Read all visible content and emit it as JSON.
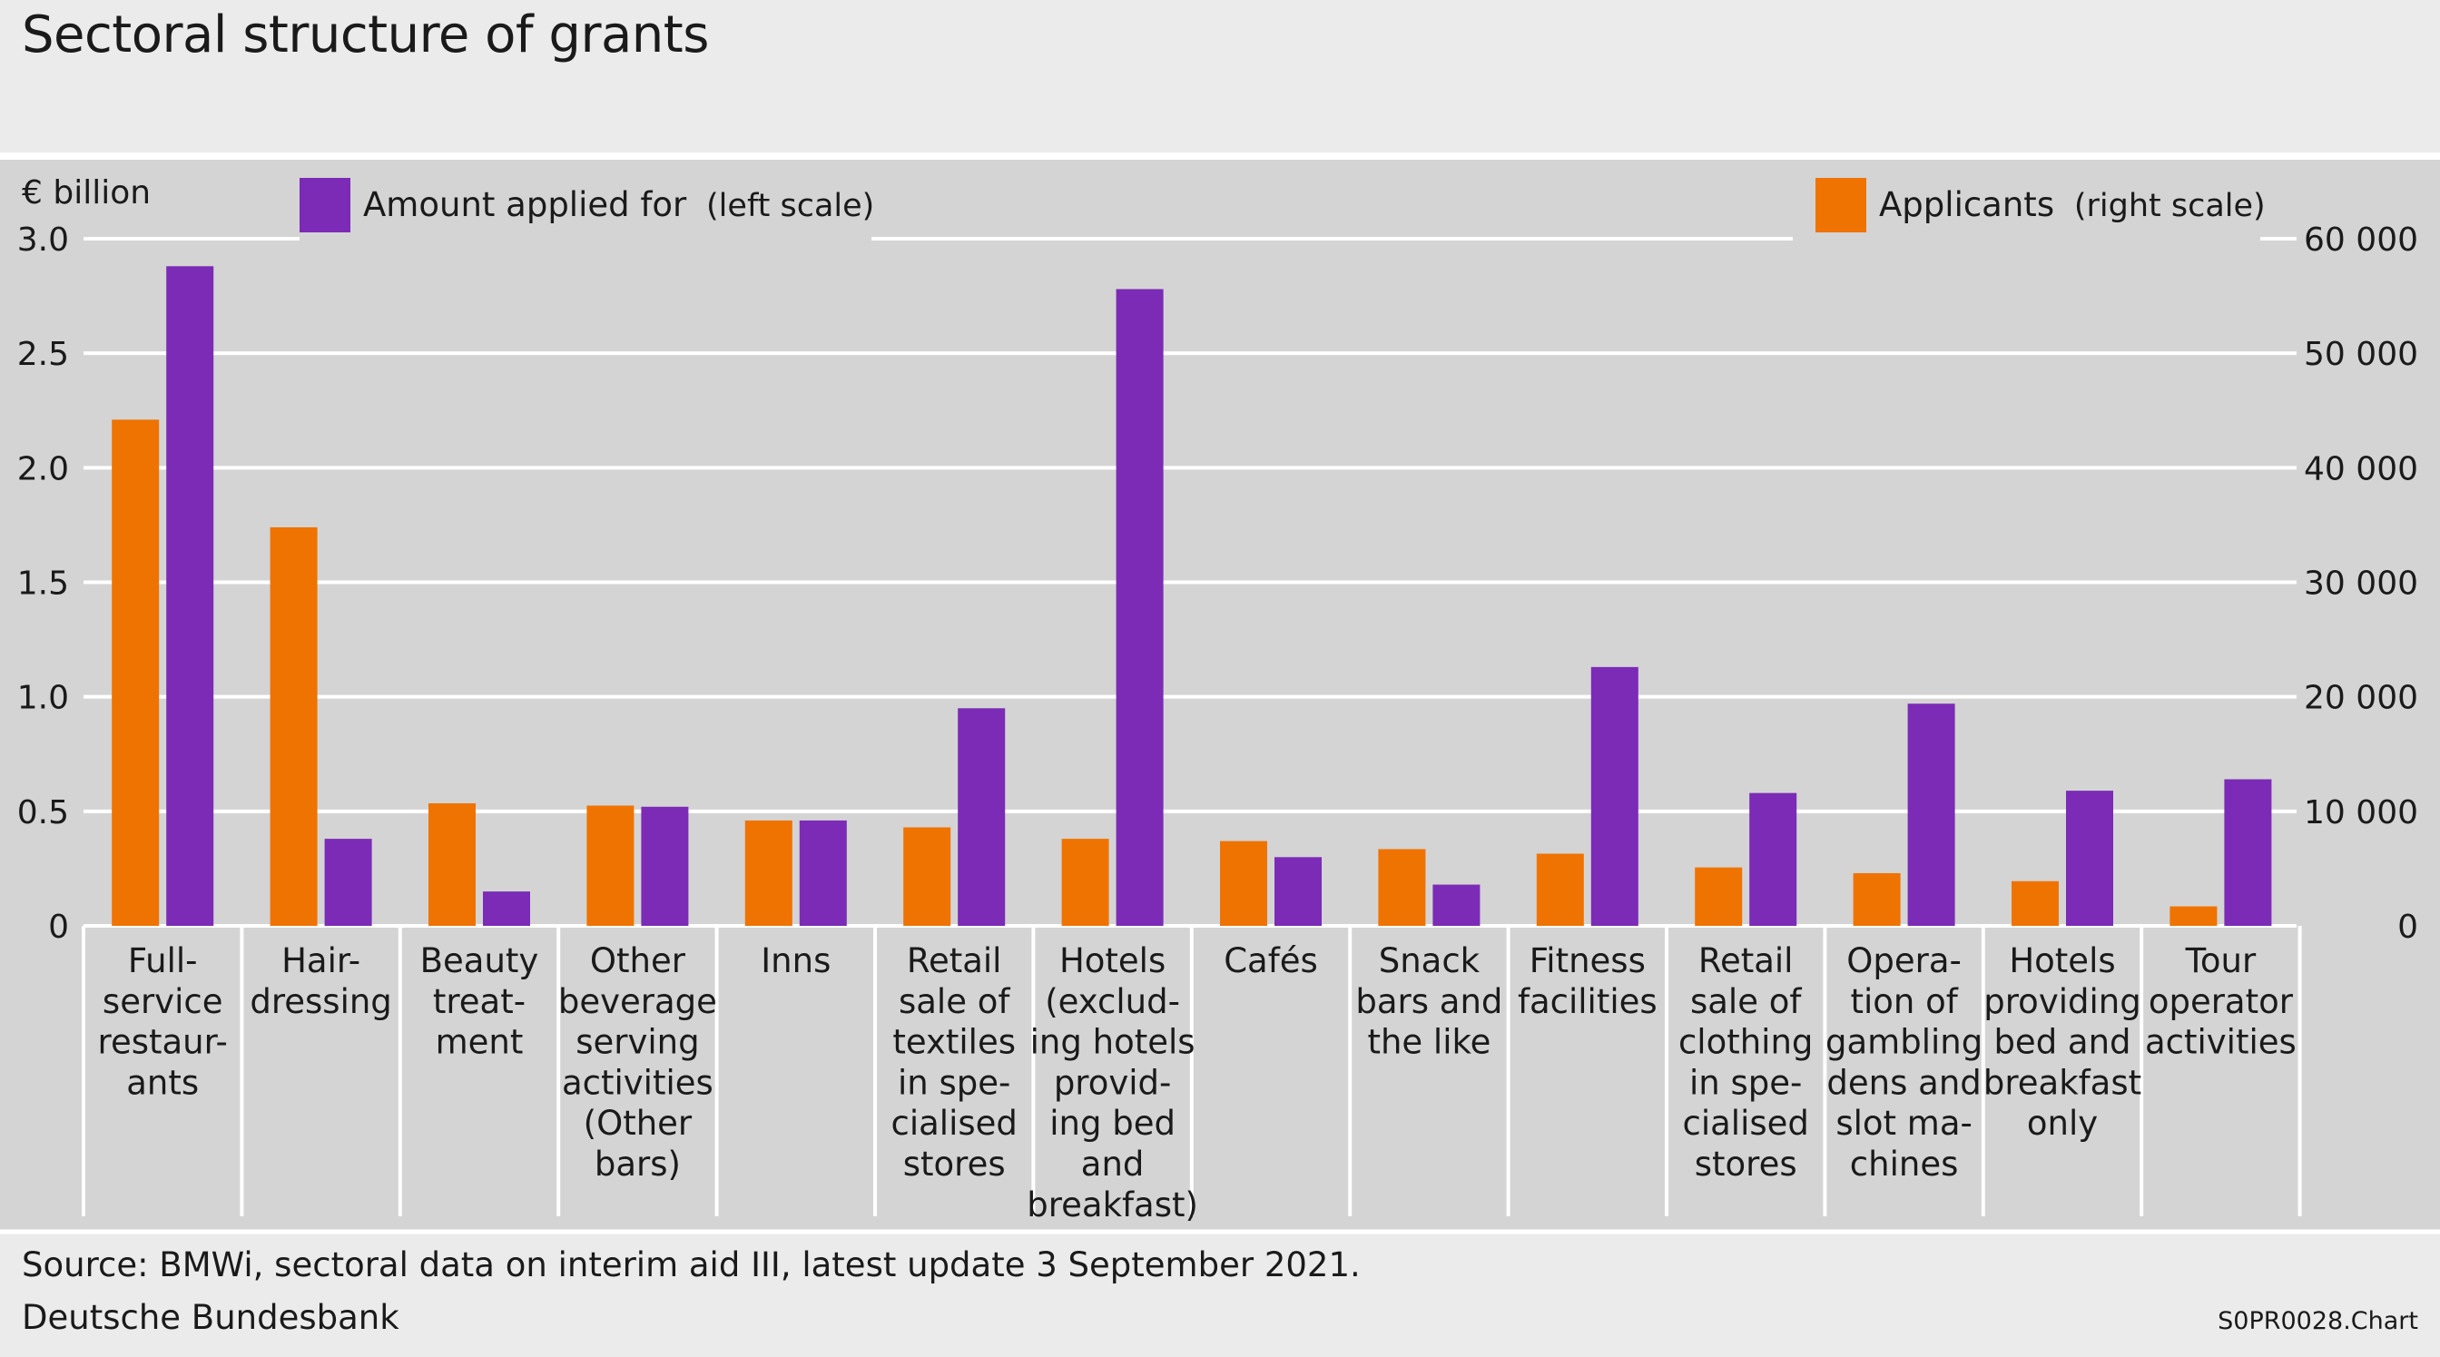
{
  "title": "Sectoral structure of grants",
  "footer": {
    "source": "Source: BMWi, sectoral data on interim aid III, latest update 3 September 2021.",
    "publisher": "Deutsche Bundesbank",
    "code": "S0PR0028.Chart"
  },
  "colors": {
    "amount": "#7b2bb5",
    "applicants": "#ef7300",
    "plot_background": "#d4d4d4",
    "page_background": "#ebebeb",
    "grid": "#ffffff"
  },
  "chart_data": {
    "type": "bar",
    "left_axis": {
      "unit": "€ billion",
      "ylim": [
        0,
        3.0
      ],
      "ticks": [
        "0",
        "0.5",
        "1.0",
        "1.5",
        "2.0",
        "2.5",
        "3.0"
      ]
    },
    "right_axis": {
      "ylim": [
        0,
        60000
      ],
      "ticks": [
        "0",
        "10 000",
        "20 000",
        "30 000",
        "40 000",
        "50 000",
        "60 000"
      ]
    },
    "grid": true,
    "legend_placement": "top",
    "categories": [
      [
        "Full-",
        "service",
        "restaur-",
        "ants"
      ],
      [
        "Hair-",
        "dressing"
      ],
      [
        "Beauty",
        "treat-",
        "ment"
      ],
      [
        "Other",
        "beverage",
        "serving",
        "activities",
        "(Other",
        "bars)"
      ],
      [
        "Inns"
      ],
      [
        "Retail",
        "sale of",
        "textiles",
        "in spe-",
        "cialised",
        "stores"
      ],
      [
        "Hotels",
        "(exclud-",
        "ing hotels",
        "provid-",
        "ing bed",
        "and",
        "breakfast)"
      ],
      [
        "Cafés"
      ],
      [
        "Snack",
        "bars and",
        "the like"
      ],
      [
        "Fitness",
        "facilities"
      ],
      [
        "Retail",
        "sale of",
        "clothing",
        "in spe-",
        "cialised",
        "stores"
      ],
      [
        "Opera-",
        "tion of",
        "gambling",
        "dens and",
        "slot ma-",
        "chines"
      ],
      [
        "Hotels",
        "providing",
        "bed and",
        "breakfast",
        "only"
      ],
      [
        "Tour",
        "operator",
        "activities"
      ]
    ],
    "series": [
      {
        "name": "Applicants",
        "name_note": "(right scale)",
        "axis": "right",
        "color": "#ef7300",
        "values": [
          44200,
          34800,
          10700,
          10500,
          9200,
          8600,
          7600,
          7400,
          6700,
          6300,
          5100,
          4600,
          3900,
          1700
        ]
      },
      {
        "name": "Amount applied for",
        "name_note": "(left scale)",
        "axis": "left",
        "color": "#7b2bb5",
        "values": [
          2.88,
          0.38,
          0.15,
          0.52,
          0.46,
          0.95,
          2.78,
          0.3,
          0.18,
          1.13,
          0.58,
          0.97,
          0.59,
          0.64
        ]
      }
    ]
  }
}
